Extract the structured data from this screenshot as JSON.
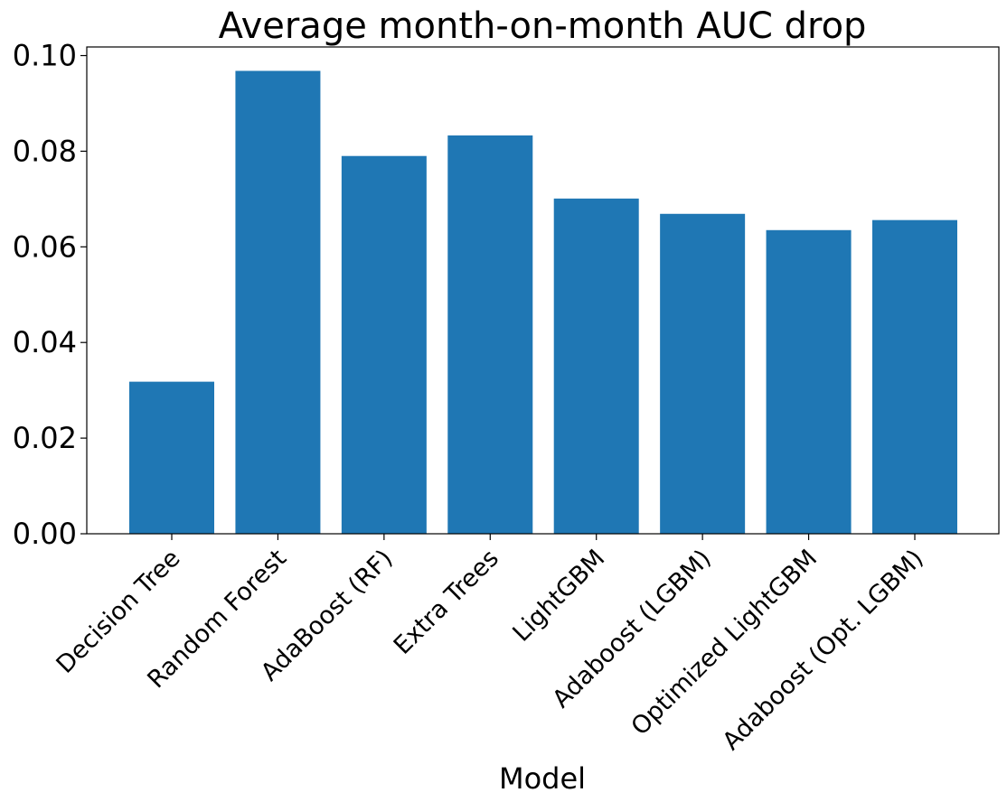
{
  "chart_data": {
    "type": "bar",
    "title": "Average month-on-month AUC drop",
    "xlabel": "Model",
    "ylabel": "",
    "categories": [
      "Decision Tree",
      "Random Forest",
      "AdaBoost (RF)",
      "Extra Trees",
      "LightGBM",
      "Adaboost (LGBM)",
      "Optimized LightGBM",
      "Adaboost (Opt. LGBM)"
    ],
    "values": [
      0.0318,
      0.0968,
      0.079,
      0.0833,
      0.0701,
      0.0669,
      0.0635,
      0.0656
    ],
    "ylim": [
      0,
      0.1018
    ],
    "yticks": [
      "0.00",
      "0.02",
      "0.04",
      "0.06",
      "0.08",
      "0.10"
    ],
    "grid": false,
    "bar_color": "#1f77b4"
  }
}
